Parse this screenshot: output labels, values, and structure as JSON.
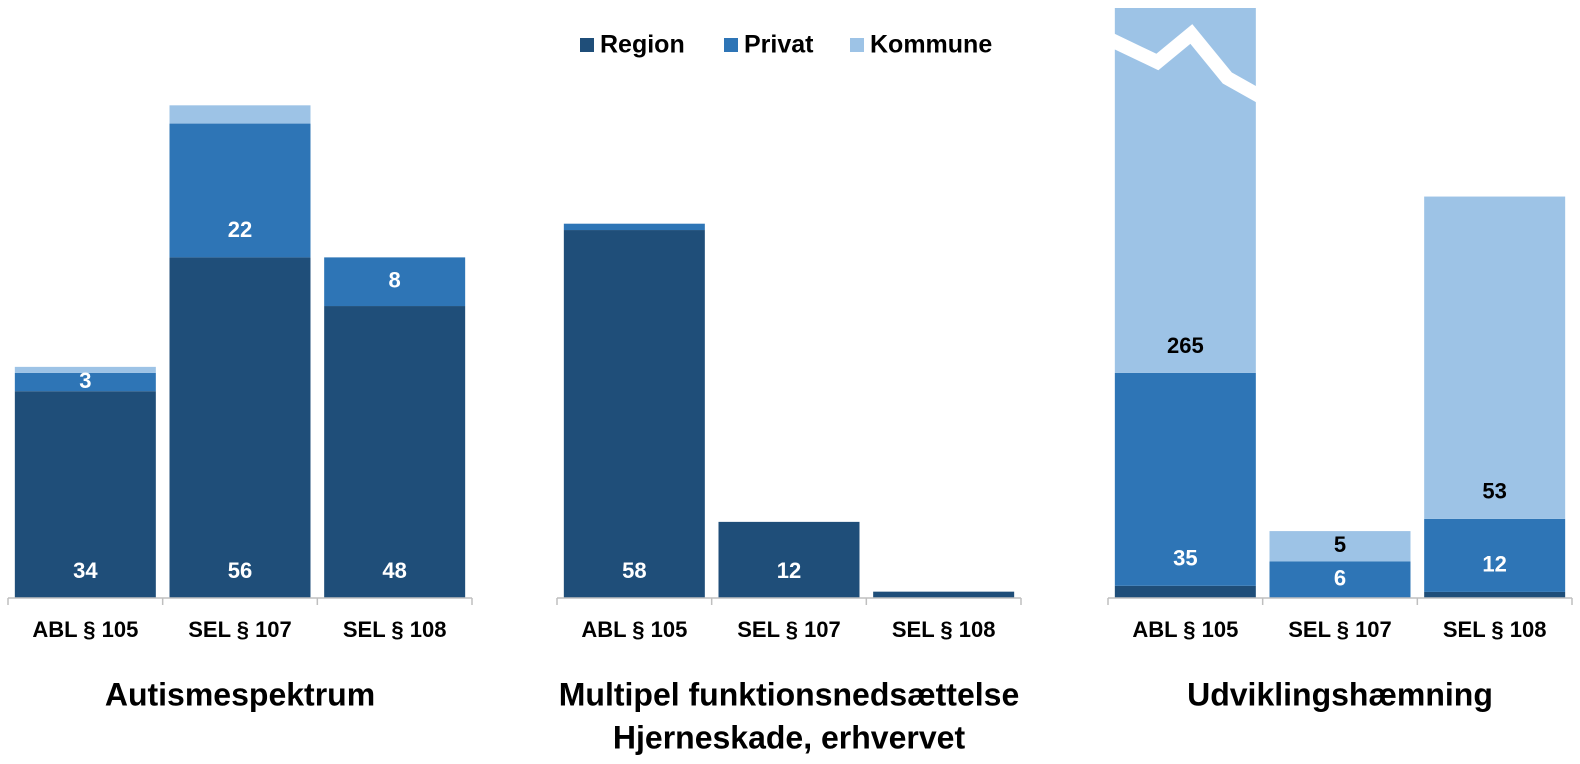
{
  "chart_data": {
    "type": "bar",
    "stacked": true,
    "legend": [
      {
        "name": "Region",
        "color": "#1f4e79"
      },
      {
        "name": "Privat",
        "color": "#2e75b6"
      },
      {
        "name": "Kommune",
        "color": "#9dc3e6"
      }
    ],
    "panels": [
      {
        "title": [
          "Autismespektrum"
        ],
        "categories": [
          "ABL § 105",
          "SEL § 107",
          "SEL § 108"
        ],
        "ylim": [
          0,
          97
        ],
        "series": [
          {
            "values": [
              34,
              56,
              48
            ],
            "value_labels": [
              "34",
              "56",
              "48"
            ]
          },
          {
            "values": [
              3,
              22,
              8
            ],
            "value_labels": [
              "3",
              "22",
              "8"
            ]
          },
          {
            "values": [
              1,
              3,
              0
            ],
            "value_labels": [
              null,
              null,
              null
            ]
          }
        ]
      },
      {
        "title": [
          "Multipel funktionsnedsættelse",
          "Hjerneskade, erhvervet"
        ],
        "categories": [
          "ABL § 105",
          "SEL § 107",
          "SEL § 108"
        ],
        "ylim": [
          0,
          93
        ],
        "series": [
          {
            "values": [
              58,
              12,
              1
            ],
            "value_labels": [
              "58",
              "12",
              null
            ]
          },
          {
            "values": [
              1,
              0,
              0
            ],
            "value_labels": [
              null,
              null,
              null
            ]
          },
          {
            "values": [
              0,
              0,
              0
            ],
            "value_labels": [
              null,
              null,
              null
            ]
          }
        ]
      },
      {
        "title": [
          "Udviklingshæmning"
        ],
        "categories": [
          "ABL § 105",
          "SEL § 107",
          "SEL § 108"
        ],
        "ylim": [
          0,
          97
        ],
        "axis_break": true,
        "series": [
          {
            "values": [
              2,
              0,
              1
            ],
            "value_labels": [
              null,
              null,
              null
            ]
          },
          {
            "values": [
              35,
              6,
              12
            ],
            "value_labels": [
              "35",
              "6",
              "12"
            ]
          },
          {
            "values": [
              265,
              5,
              53
            ],
            "value_labels": [
              "265",
              "5",
              "53"
            ]
          }
        ]
      }
    ]
  }
}
